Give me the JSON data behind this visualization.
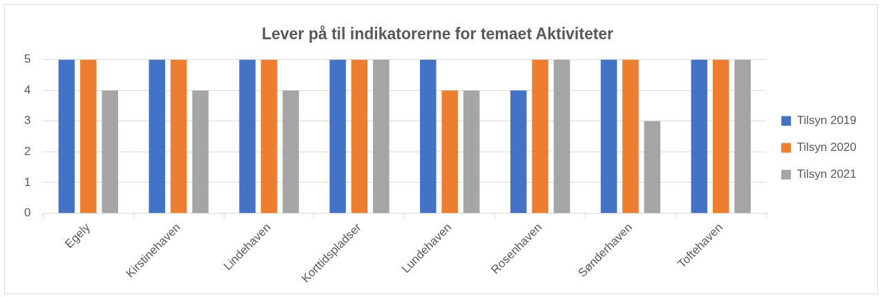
{
  "chart_data": {
    "type": "bar",
    "title": "Lever på til indikatorerne for temaet Aktiviteter",
    "categories": [
      "Egely",
      "Kirstinehaven",
      "Lindehaven",
      "Korttidspladser",
      "Lundehaven",
      "Rosenhaven",
      "Sønderhaven",
      "Toftehaven"
    ],
    "series": [
      {
        "name": "Tilsyn 2019",
        "color": "#4472c4",
        "values": [
          5,
          5,
          5,
          5,
          5,
          4,
          5,
          5
        ]
      },
      {
        "name": "Tilsyn 2020",
        "color": "#ed7d31",
        "values": [
          5,
          5,
          5,
          5,
          4,
          5,
          5,
          5
        ]
      },
      {
        "name": "Tilsyn 2021",
        "color": "#a5a5a5",
        "values": [
          4,
          4,
          4,
          5,
          4,
          5,
          3,
          5
        ]
      }
    ],
    "ylim": [
      0,
      5
    ],
    "yticks": [
      0,
      1,
      2,
      3,
      4,
      5
    ],
    "grid": "y",
    "legend": "right"
  }
}
